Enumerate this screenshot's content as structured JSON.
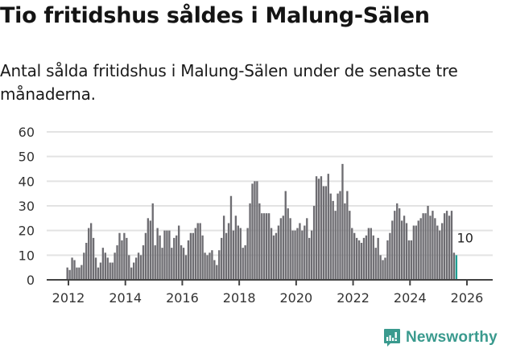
{
  "header": {
    "title": "Tio fritidshus såldes i Malung-Sälen",
    "subtitle": "Antal sålda fritidshus i Malung-Sälen under de senaste tre månaderna."
  },
  "brand": {
    "name": "Newsworthy",
    "color": "#3a9a8e"
  },
  "colors": {
    "bar": "#6e6d72",
    "highlight": "#1e9e92",
    "grid": "#e3e3e3",
    "axis": "#444444",
    "tick_text": "#333333"
  },
  "chart_data": {
    "type": "bar",
    "title": "Tio fritidshus såldes i Malung-Sälen",
    "subtitle": "Antal sålda fritidshus i Malung-Sälen under de senaste tre månaderna.",
    "xlabel": "",
    "ylabel": "",
    "ylim": [
      0,
      60
    ],
    "yticks": [
      0,
      10,
      20,
      30,
      40,
      50,
      60
    ],
    "xticks": [
      "2012",
      "2014",
      "2016",
      "2018",
      "2020",
      "2022",
      "2024",
      "2026"
    ],
    "grid": true,
    "legend": "none",
    "start": "2012-01",
    "frequency": "monthly",
    "annotation": {
      "label": "10",
      "target": "last"
    },
    "values": [
      5,
      4,
      9,
      8,
      5,
      5,
      6,
      11,
      15,
      21,
      23,
      17,
      9,
      5,
      7,
      13,
      11,
      9,
      7,
      7,
      11,
      14,
      19,
      16,
      19,
      17,
      10,
      5,
      7,
      9,
      11,
      10,
      14,
      19,
      25,
      24,
      31,
      14,
      21,
      18,
      13,
      20,
      20,
      20,
      13,
      17,
      18,
      22,
      14,
      13,
      10,
      16,
      19,
      19,
      21,
      23,
      23,
      18,
      11,
      10,
      11,
      12,
      8,
      6,
      12,
      17,
      26,
      19,
      23,
      34,
      20,
      26,
      22,
      21,
      13,
      14,
      21,
      31,
      39,
      40,
      40,
      31,
      27,
      27,
      27,
      27,
      21,
      18,
      19,
      22,
      25,
      26,
      36,
      29,
      25,
      20,
      20,
      21,
      23,
      20,
      22,
      25,
      17,
      20,
      30,
      42,
      41,
      42,
      38,
      38,
      43,
      35,
      32,
      28,
      35,
      36,
      47,
      31,
      36,
      28,
      21,
      19,
      17,
      16,
      15,
      17,
      18,
      21,
      21,
      18,
      13,
      17,
      10,
      8,
      9,
      16,
      19,
      24,
      28,
      31,
      29,
      24,
      26,
      23,
      16,
      16,
      22,
      22,
      24,
      25,
      27,
      27,
      30,
      26,
      28,
      25,
      22,
      20,
      23,
      27,
      28,
      26,
      28,
      11,
      10
    ]
  }
}
